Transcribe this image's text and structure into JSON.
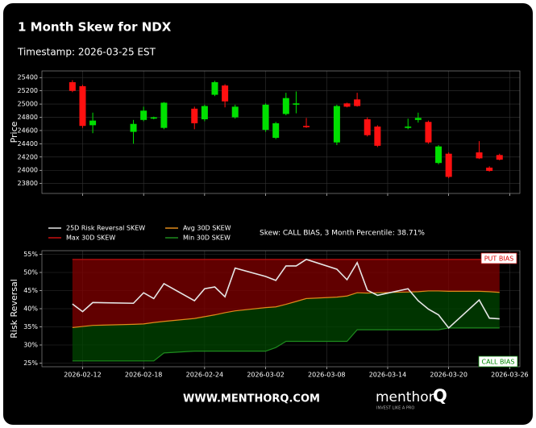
{
  "header": {
    "title": "1 Month Skew for NDX",
    "subtitle": "Timestamp: 2026-03-25 EST"
  },
  "chart_data": [
    {
      "type": "candlestick",
      "ylabel": "Price",
      "x": [
        "2026-02-11",
        "2026-02-12",
        "2026-02-13",
        "2026-02-17",
        "2026-02-18",
        "2026-02-19",
        "2026-02-20",
        "2026-02-23",
        "2026-02-24",
        "2026-02-25",
        "2026-02-26",
        "2026-02-27",
        "2026-03-02",
        "2026-03-03",
        "2026-03-04",
        "2026-03-05",
        "2026-03-06",
        "2026-03-09",
        "2026-03-10",
        "2026-03-11",
        "2026-03-12",
        "2026-03-13",
        "2026-03-16",
        "2026-03-17",
        "2026-03-18",
        "2026-03-19",
        "2026-03-20",
        "2026-03-23",
        "2026-03-24",
        "2026-03-25"
      ],
      "open": [
        25330,
        25270,
        24680,
        24580,
        24760,
        24780,
        24640,
        24930,
        24770,
        25140,
        25280,
        24800,
        24610,
        24490,
        24850,
        24990,
        24670,
        24420,
        25010,
        25070,
        24770,
        24660,
        24640,
        24760,
        24730,
        24110,
        24250,
        24270,
        24040,
        24230
      ],
      "high": [
        25360,
        25290,
        24870,
        24760,
        24960,
        24810,
        25030,
        24960,
        24990,
        25350,
        25300,
        24990,
        25010,
        24730,
        25170,
        25190,
        24790,
        24990,
        25020,
        25170,
        24800,
        24680,
        24780,
        24870,
        24750,
        24380,
        24270,
        24440,
        24060,
        24250
      ],
      "low": [
        25180,
        24640,
        24560,
        24400,
        24740,
        24770,
        24620,
        24620,
        24740,
        25120,
        24950,
        24780,
        24580,
        24470,
        24830,
        24860,
        24640,
        24380,
        24950,
        24960,
        24510,
        24350,
        24620,
        24720,
        24400,
        24090,
        23880,
        24170,
        23980,
        24150
      ],
      "close": [
        25200,
        24670,
        24750,
        24700,
        24900,
        24800,
        25020,
        24710,
        24970,
        25330,
        25040,
        24960,
        24990,
        24710,
        25090,
        25010,
        24650,
        24970,
        24960,
        24970,
        24530,
        24370,
        24660,
        24790,
        24420,
        24360,
        23900,
        24180,
        23990,
        24160
      ],
      "up_color": "#00e000",
      "down_color": "#ff1010",
      "xlim": [
        "2026-02-08",
        "2026-03-27"
      ],
      "xticks": [
        "2026-02-12",
        "2026-02-18",
        "2026-02-24",
        "2026-03-02",
        "2026-03-08",
        "2026-03-14",
        "2026-03-20",
        "2026-03-26"
      ],
      "ylim": [
        23650,
        25500
      ],
      "yticks": [
        23800,
        24000,
        24200,
        24400,
        24600,
        24800,
        25000,
        25200,
        25400
      ],
      "grid": true
    },
    {
      "type": "line",
      "ylabel": "Risk Reversal",
      "annotation": "Skew: CALL BIAS, 3 Month Percentile: 38.71%",
      "upper_label": "PUT BIAS",
      "lower_label": "CALL BIAS",
      "x": [
        "2026-02-11",
        "2026-02-12",
        "2026-02-13",
        "2026-02-17",
        "2026-02-18",
        "2026-02-19",
        "2026-02-20",
        "2026-02-23",
        "2026-02-24",
        "2026-02-25",
        "2026-02-26",
        "2026-02-27",
        "2026-03-02",
        "2026-03-03",
        "2026-03-04",
        "2026-03-05",
        "2026-03-06",
        "2026-03-09",
        "2026-03-10",
        "2026-03-11",
        "2026-03-12",
        "2026-03-13",
        "2026-03-16",
        "2026-03-17",
        "2026-03-18",
        "2026-03-19",
        "2026-03-20",
        "2026-03-23",
        "2026-03-24",
        "2026-03-25"
      ],
      "series": [
        {
          "name": "25D Risk Reversal SKEW",
          "color": "#e6e6e6",
          "values": [
            41.3,
            39.2,
            41.7,
            41.5,
            44.4,
            42.8,
            46.9,
            42.2,
            45.5,
            46.0,
            43.3,
            51.2,
            48.9,
            47.8,
            51.8,
            51.8,
            53.6,
            50.9,
            48.0,
            52.7,
            45.1,
            43.7,
            45.5,
            42.2,
            39.9,
            38.3,
            34.7,
            42.4,
            37.4,
            37.2
          ]
        },
        {
          "name": "Avg 30D SKEW",
          "color": "#e08a1a",
          "values": [
            34.8,
            35.1,
            35.4,
            35.7,
            35.8,
            36.2,
            36.5,
            37.3,
            37.8,
            38.3,
            38.9,
            39.4,
            40.3,
            40.5,
            41.2,
            42.0,
            42.8,
            43.2,
            43.5,
            44.4,
            44.3,
            44.4,
            44.6,
            44.7,
            44.9,
            44.9,
            44.8,
            44.8,
            44.7,
            44.5
          ]
        },
        {
          "name": "Max 30D SKEW",
          "color": "#c81010",
          "values": [
            53.6,
            53.6,
            53.6,
            53.6,
            53.6,
            53.6,
            53.6,
            53.6,
            53.6,
            53.6,
            53.6,
            53.6,
            53.6,
            53.6,
            53.6,
            53.6,
            53.6,
            53.6,
            53.6,
            53.6,
            53.6,
            53.6,
            53.6,
            53.6,
            53.6,
            53.6,
            53.6,
            53.6,
            53.6,
            53.6
          ]
        },
        {
          "name": "Min 30D SKEW",
          "color": "#1e8a1e",
          "values": [
            25.6,
            25.6,
            25.6,
            25.6,
            25.6,
            25.6,
            27.8,
            28.3,
            28.3,
            28.3,
            28.3,
            28.3,
            28.3,
            29.3,
            31.0,
            31.0,
            31.0,
            31.0,
            31.0,
            34.2,
            34.2,
            34.2,
            34.2,
            34.2,
            34.2,
            34.2,
            34.7,
            34.7,
            34.7,
            34.7
          ]
        }
      ],
      "xlim": [
        "2026-02-08",
        "2026-03-27"
      ],
      "xticks": [
        "2026-02-12",
        "2026-02-18",
        "2026-02-24",
        "2026-03-02",
        "2026-03-08",
        "2026-03-14",
        "2026-03-20",
        "2026-03-26"
      ],
      "ylim": [
        24,
        56
      ],
      "yticks": [
        {
          "value": 25,
          "label": "25%"
        },
        {
          "value": 30,
          "label": "30%"
        },
        {
          "value": 35,
          "label": "35%"
        },
        {
          "value": 40,
          "label": "40%"
        },
        {
          "value": 45,
          "label": "45%"
        },
        {
          "value": 50,
          "label": "50%"
        },
        {
          "value": 55,
          "label": "55%"
        }
      ],
      "grid": true
    }
  ],
  "footer": {
    "website": "WWW.MENTHORQ.COM",
    "brand": "menthor",
    "brand_mark": "Q",
    "tagline": "INVEST LIKE A PRO"
  }
}
